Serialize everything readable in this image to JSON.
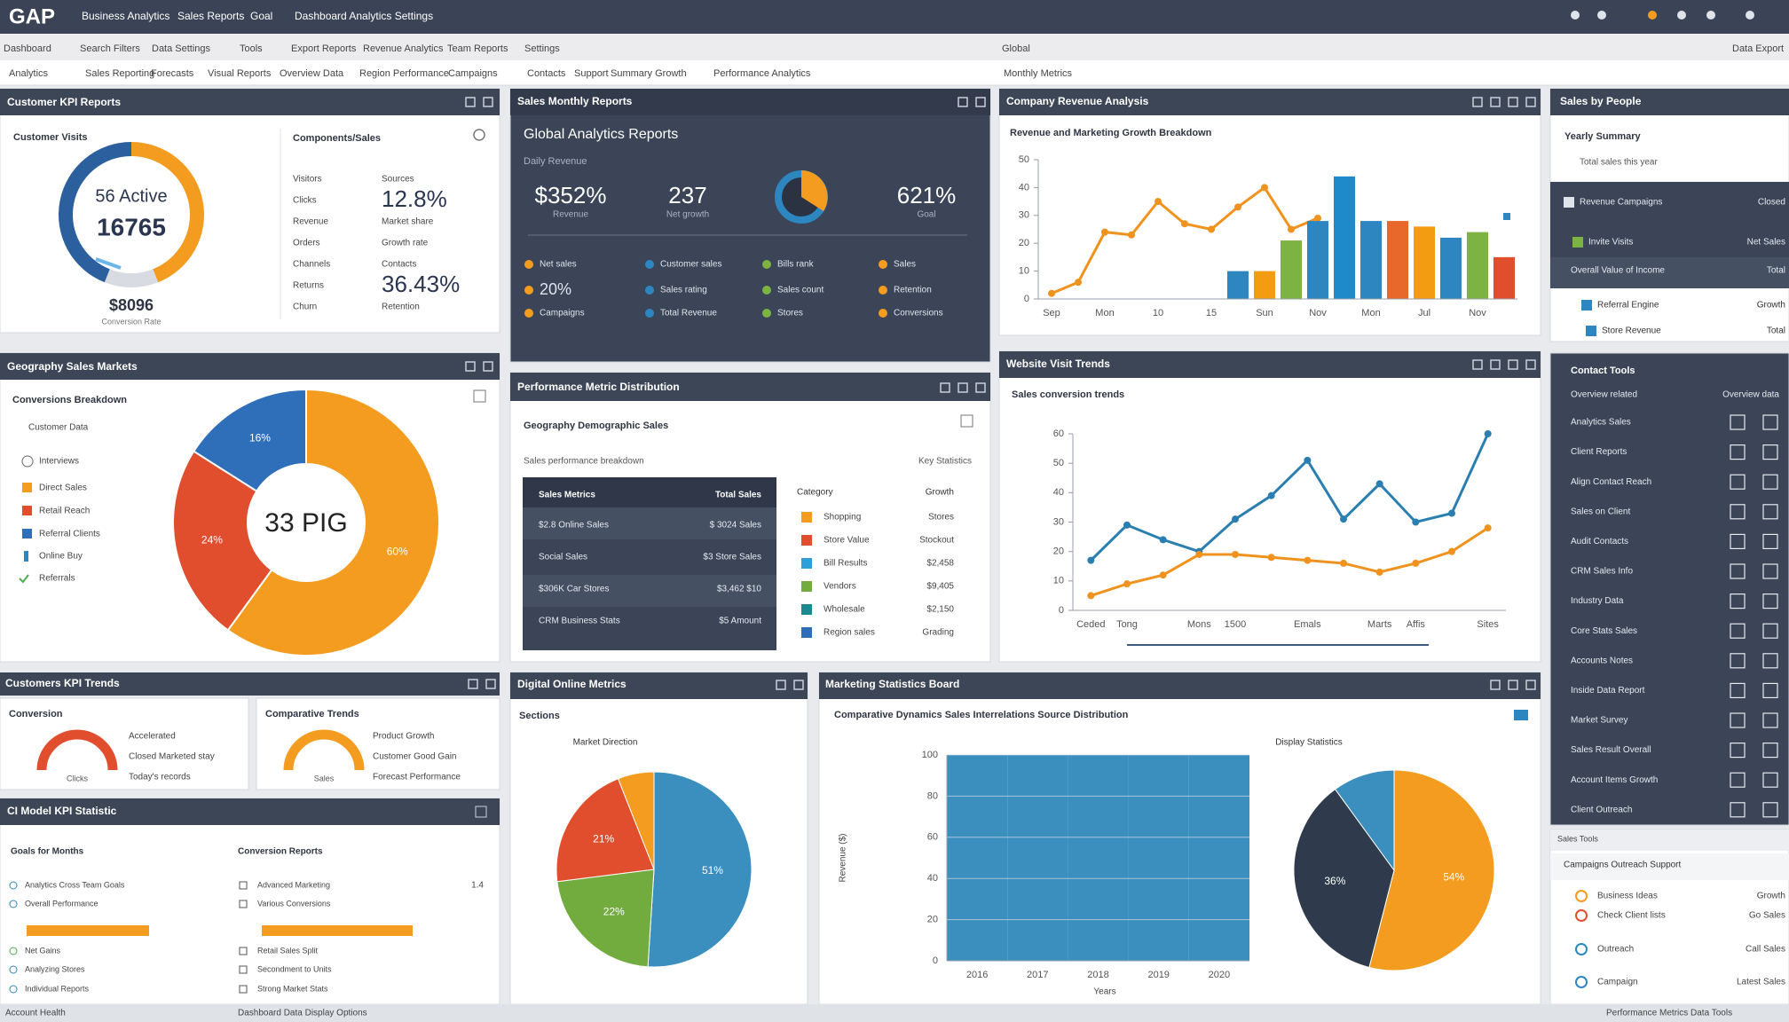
{
  "header": {
    "logo": "GAP",
    "menu": [
      "Business Analytics",
      "Sales Reports",
      "Goal",
      "Dashboard Analytics Settings"
    ]
  },
  "toolbar": [
    "Dashboard",
    "Search Filters",
    "Data Settings",
    "Tools",
    "Export Reports",
    "Revenue Analytics",
    "Team Reports",
    "Settings",
    "Global",
    "Data Export"
  ],
  "tabs": [
    "Analytics",
    "Sales Reporting",
    "Forecasts",
    "Visual Reports",
    "Overview Data",
    "Region Performance",
    "Campaigns",
    "Contacts",
    "Support",
    "Summary Growth",
    "Performance Analytics",
    "Monthly Metrics"
  ],
  "panels": {
    "kpi": {
      "title": "Customer KPI Reports",
      "subtitle": "Customer Visits",
      "ring_label": "56 Active",
      "ring_value": "16765",
      "foot_value": "$8096",
      "foot_label": "Conversion Rate",
      "side_title": "Components/Sales",
      "rows": [
        [
          "Visitors",
          "Sources"
        ],
        [
          "Clicks",
          "12.8%"
        ],
        [
          "Revenue",
          "Market share"
        ],
        [
          "Orders",
          "Growth rate"
        ],
        [
          "Channels",
          "Contacts"
        ],
        [
          "Returns",
          "36.43%"
        ],
        [
          "Churn",
          "Retention"
        ]
      ]
    },
    "monthly": {
      "title": "Sales Monthly Reports",
      "heading": "Global Analytics Reports",
      "subtitle": "Daily Revenue",
      "kpis": [
        [
          "$352%",
          "Revenue"
        ],
        [
          "237",
          "Net growth"
        ],
        [
          "621%",
          "Goal"
        ]
      ],
      "items": [
        "Net sales",
        "Customer sales",
        "Bills rank",
        "Sales",
        "20%",
        "Sales rating",
        "Sales count",
        "Retention",
        "Campaigns",
        "Total Revenue",
        "Stores",
        "Conversions"
      ]
    },
    "people": {
      "title": "Sales by People",
      "summary": "Yearly Summary",
      "note": "Total sales this year",
      "rows": [
        [
          "Revenue Campaigns",
          "Closed"
        ],
        [
          "Invite Visits",
          "Net Sales"
        ],
        [
          "Overall Value of Income",
          "Total"
        ],
        [
          "Referral Engine",
          "Growth"
        ],
        [
          "Store Revenue",
          "Total"
        ]
      ]
    },
    "markets": {
      "customer_data": "Customer Data",
      "extra_legend": [
        "Interviews",
        "Online Buy",
        "Referrals"
      ]
    },
    "metrics": {
      "title": "Performance Metric Distribution",
      "subtitle": "Geography Demographic Sales",
      "note": "Sales performance breakdown",
      "key": "Key Statistics",
      "head": [
        "Sales Metrics",
        "Total Sales"
      ],
      "rows": [
        [
          "$2.8 Online Sales",
          "$ 3024 Sales"
        ],
        [
          "Social Sales",
          "$3 Store Sales"
        ],
        [
          "$306K Car Stores",
          "$3,462 $10"
        ],
        [
          "CRM Business Stats",
          "$5 Amount"
        ]
      ],
      "list_head": [
        "Category",
        "Growth"
      ],
      "list": [
        [
          "Shopping",
          "Stores"
        ],
        [
          "Store Value",
          "Stockout"
        ],
        [
          "Bill Results",
          "$2,458"
        ],
        [
          "Vendors",
          "$9,405"
        ],
        [
          "Wholesale",
          "$2,150"
        ],
        [
          "Region sales",
          "Grading"
        ]
      ]
    },
    "contacts": {
      "title": "Contact Tools",
      "head": [
        "Overview related",
        "Overview data"
      ],
      "items": [
        "Analytics Sales",
        "Client Reports",
        "Align Contact Reach",
        "Sales on Client",
        "Audit Contacts",
        "CRM Sales Info",
        "Industry Data",
        "Core Stats Sales",
        "Accounts Notes",
        "Inside Data Report",
        "Market Survey",
        "Sales Result Overall",
        "Account Items Growth",
        "Client Outreach"
      ]
    },
    "trends": {
      "title": "Customers KPI Trends",
      "cards": [
        {
          "title": "Conversion",
          "gauge": "Clicks",
          "notes": [
            "Accelerated",
            "Closed Marketed stay",
            "Today's records"
          ]
        },
        {
          "title": "Comparative Trends",
          "gauge": "Sales",
          "notes": [
            "Product Growth",
            "Customer Good Gain",
            "Forecast Performance"
          ]
        }
      ]
    },
    "model": {
      "title": "CI Model KPI Statistic",
      "left_title": "Goals for Months",
      "right_title": "Conversion Reports",
      "count": "1.4",
      "left": [
        "Analytics Cross Team Goals",
        "Overall Performance",
        "Net Gains",
        "Analyzing Stores",
        "Individual Reports"
      ],
      "right": [
        "Advanced Marketing",
        "Various Conversions",
        "Retail Sales Split",
        "Secondment to Units",
        "Strong Market Stats"
      ]
    },
    "tools": {
      "title": "Sales Tools",
      "subtitle": "Campaigns Outreach Support",
      "rows": [
        [
          "Business Ideas",
          "Growth"
        ],
        [
          "Check Client lists",
          "Go Sales"
        ],
        [
          "Outreach",
          "Call Sales"
        ],
        [
          "Campaign",
          "Latest Sales"
        ]
      ]
    }
  },
  "footer": [
    "Account Health",
    "Dashboard Data Display Options",
    "Performance Metrics Data Tools"
  ],
  "chart_data": [
    {
      "type": "donut",
      "values": [
        44,
        12,
        44
      ],
      "colors": [
        "#f39c1f",
        "#d8dce2",
        "#2c5f9e"
      ]
    },
    {
      "type": "bar",
      "title": "Company Revenue Analysis",
      "subtitle": "Revenue and Marketing Growth Breakdown",
      "categories": [
        "Sep",
        null,
        "Mon",
        null,
        "10",
        null,
        "15",
        null,
        "Sun",
        null,
        "Nov",
        null,
        "Mon",
        null,
        "Jul",
        null,
        "Nov",
        null
      ],
      "ylim": [
        0,
        50
      ],
      "yticks": [
        0,
        10,
        20,
        30,
        40,
        50
      ],
      "grid": false,
      "series": [
        {
          "type": "line",
          "color": "#f0921e",
          "values": [
            2,
            6,
            24,
            23,
            35,
            27,
            25,
            33,
            40,
            25,
            29,
            null,
            null,
            null,
            null,
            null,
            null,
            null
          ]
        },
        {
          "type": "bar",
          "values": [
            null,
            null,
            null,
            null,
            null,
            null,
            null,
            10,
            10,
            21,
            28,
            44,
            28,
            28,
            26,
            22,
            24,
            15
          ],
          "colors": [
            null,
            null,
            null,
            null,
            null,
            null,
            null,
            "#2e86c1",
            "#f39c12",
            "#7cb342",
            "#2e86c1",
            "#1f8ac9",
            "#2e86c1",
            "#e8672a",
            "#f39c12",
            "#2e86c1",
            "#7cb342",
            "#e04e2e"
          ]
        }
      ]
    },
    {
      "type": "donut",
      "title": "Geography Sales Markets",
      "subtitle": "Conversions Breakdown",
      "center_label": "33 PIG",
      "categories": [
        "Direct Sales",
        "Retail Reach",
        "Referral Clients"
      ],
      "values": [
        60,
        24,
        16
      ],
      "value_labels": [
        "60%",
        "24%",
        "16%"
      ],
      "colors": [
        "#f39c1f",
        "#e04e2e",
        "#2f6fba"
      ]
    },
    {
      "type": "line",
      "title": "Website Visit Trends",
      "subtitle": "Sales conversion trends",
      "categories": [
        "Ceded",
        "Tong",
        null,
        "Mons",
        "1500",
        null,
        "Emals",
        null,
        "Marts",
        "Affis",
        null,
        "Sites"
      ],
      "ylim": [
        0,
        60
      ],
      "yticks": [
        0,
        10,
        20,
        30,
        40,
        50,
        60
      ],
      "grid": false,
      "series": [
        {
          "color": "#2a7fb0",
          "values": [
            17,
            29,
            24,
            20,
            31,
            39,
            51,
            31,
            43,
            30,
            33,
            60
          ]
        },
        {
          "color": "#f0921e",
          "values": [
            5,
            9,
            12,
            19,
            19,
            18,
            17,
            16,
            13,
            16,
            20,
            28
          ]
        }
      ]
    },
    {
      "type": "pie",
      "title": "Digital Online Metrics",
      "subtitle": "Sections",
      "pie_title": "Market Direction",
      "values": [
        51,
        22,
        21,
        6
      ],
      "value_labels": [
        "51%",
        "22%",
        "21%",
        null
      ],
      "colors": [
        "#3a8fbf",
        "#72ac3f",
        "#e04e2e",
        "#f39c1f"
      ]
    },
    {
      "type": "bar",
      "title": "Marketing Statistics Board",
      "subtitle": "Comparative Dynamics Sales Interrelations Source Distribution",
      "ylabel": "Revenue ($)",
      "xlabel": "Years",
      "categories": [
        "2016",
        "2017",
        "2018",
        "2019",
        "2020"
      ],
      "values": [
        100,
        100,
        100,
        100,
        100
      ],
      "color": "#3a8fbf",
      "ylim": [
        0,
        100
      ],
      "yticks": [
        0,
        20,
        40,
        60,
        80,
        100
      ],
      "grid": true
    },
    {
      "type": "pie",
      "title": "Display Statistics",
      "values": [
        54,
        36,
        10
      ],
      "value_labels": [
        "54%",
        "36%",
        null
      ],
      "colors": [
        "#f39c1f",
        "#2f3a4d",
        "#3a8fbf"
      ]
    }
  ]
}
